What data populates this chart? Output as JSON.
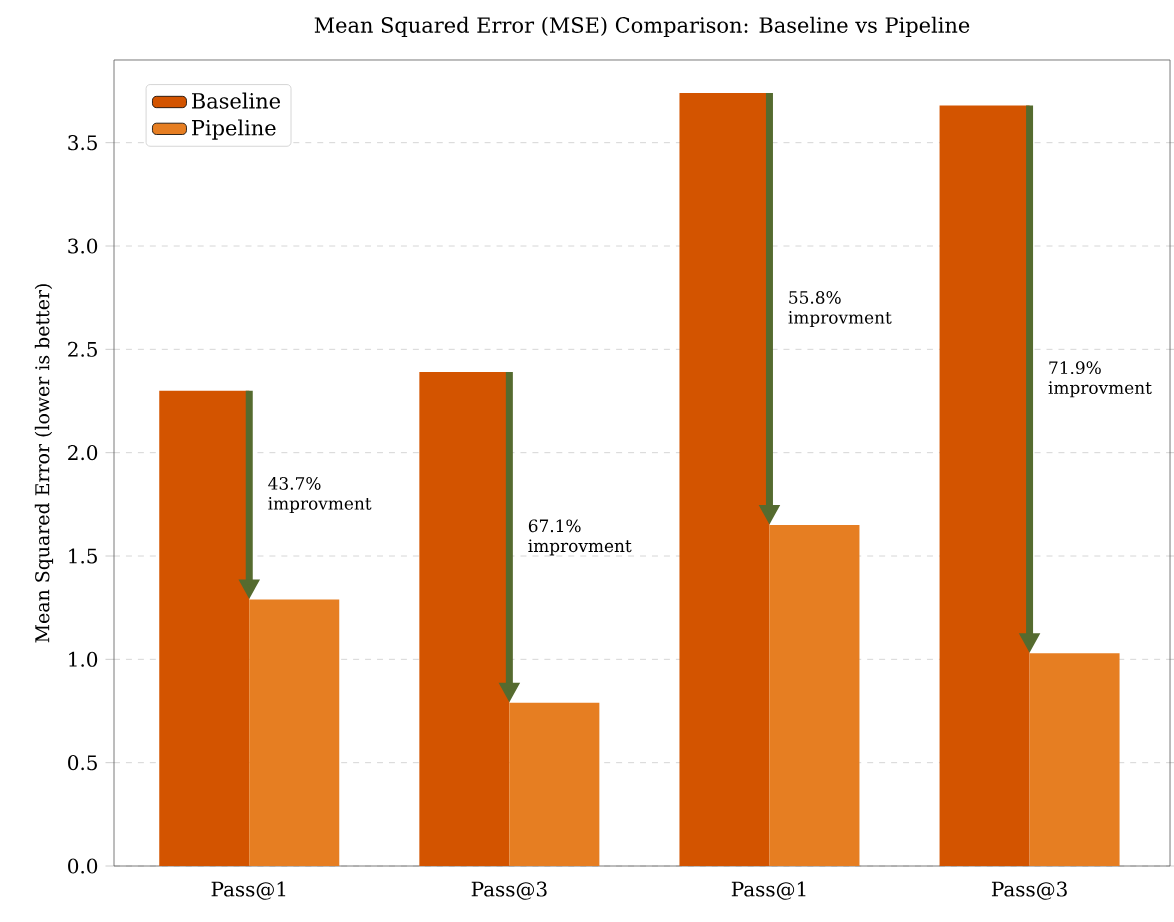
{
  "chart_data": {
    "type": "bar",
    "title": "Mean Squared Error (MSE) Comparison: Baseline vs Pipeline",
    "ylabel": "Mean Squared Error (lower is better)",
    "categories": [
      "Pass@1",
      "Pass@3",
      "Pass@1",
      "Pass@3"
    ],
    "series": [
      {
        "name": "Baseline",
        "color": "#d35400",
        "values": [
          2.3,
          2.39,
          3.74,
          3.68
        ]
      },
      {
        "name": "Pipeline",
        "color": "#e67e22",
        "values": [
          1.29,
          0.79,
          1.65,
          1.03
        ]
      }
    ],
    "ylim": [
      0,
      3.9
    ],
    "yticks": [
      {
        "value": 0,
        "label": "0.0"
      },
      {
        "value": 0.5,
        "label": "0.5"
      },
      {
        "value": 1,
        "label": "1.0"
      },
      {
        "value": 1.5,
        "label": "1.5"
      },
      {
        "value": 2,
        "label": "2.0"
      },
      {
        "value": 2.5,
        "label": "2.5"
      },
      {
        "value": 3,
        "label": "3.0"
      },
      {
        "value": 3.5,
        "label": "3.5"
      }
    ],
    "grid": "y",
    "legend": "top left",
    "annotations": [
      "43.7% improvment",
      "67.1% improvment",
      "55.8% improvment",
      "71.9% improvment"
    ]
  }
}
